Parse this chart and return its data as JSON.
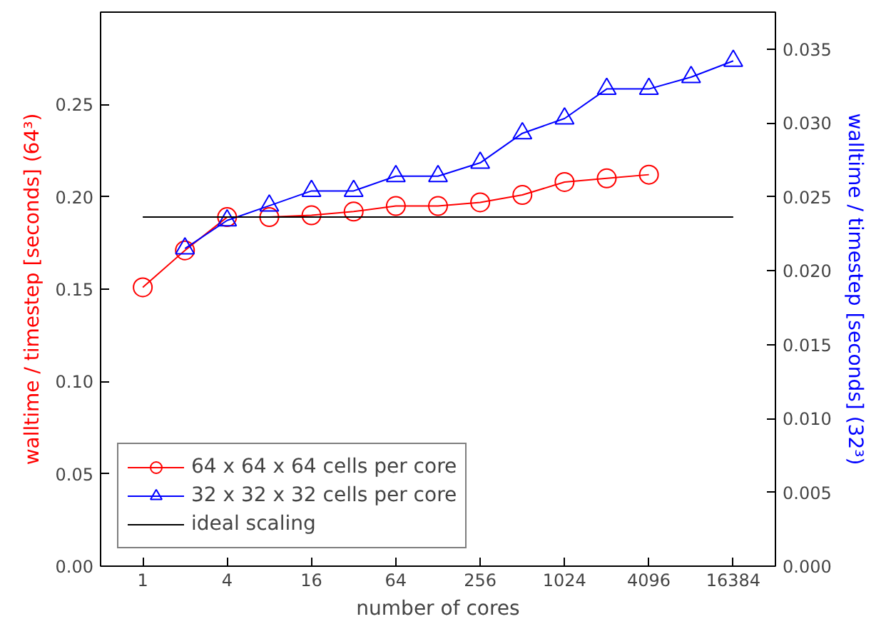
{
  "chart_data": {
    "type": "line",
    "xlabel": "number of cores",
    "ylabel": "walltime / timestep [seconds] (64³)",
    "y2label": "walltime / timestep [seconds] (32³)",
    "log": "x",
    "xlim": [
      0.5,
      32768
    ],
    "xticks": [
      1,
      4,
      16,
      64,
      256,
      1024,
      4096,
      16384
    ],
    "ylim": [
      0,
      0.3
    ],
    "yticks": [
      {
        "value": 0,
        "label": "0.00"
      },
      {
        "value": 0.05,
        "label": "0.05"
      },
      {
        "value": 0.1,
        "label": "0.10"
      },
      {
        "value": 0.15,
        "label": "0.15"
      },
      {
        "value": 0.2,
        "label": "0.20"
      },
      {
        "value": 0.25,
        "label": "0.25"
      }
    ],
    "y2lim": [
      0,
      0.0375
    ],
    "y2ticks": [
      {
        "value": 0,
        "label": "0.000"
      },
      {
        "value": 0.005,
        "label": "0.005"
      },
      {
        "value": 0.01,
        "label": "0.010"
      },
      {
        "value": 0.015,
        "label": "0.015"
      },
      {
        "value": 0.02,
        "label": "0.020"
      },
      {
        "value": 0.025,
        "label": "0.025"
      },
      {
        "value": 0.03,
        "label": "0.030"
      },
      {
        "value": 0.035,
        "label": "0.035"
      }
    ],
    "grid": false,
    "legend": "bottom left",
    "series": [
      {
        "name": "64 x 64 x 64 cells per core",
        "color": "#ff0000",
        "marker": "circle",
        "axis": "y",
        "x": [
          1,
          2,
          4,
          8,
          16,
          32,
          64,
          128,
          256,
          512,
          1024,
          2048,
          4096
        ],
        "values": [
          0.151,
          0.171,
          0.189,
          0.189,
          0.19,
          0.192,
          0.195,
          0.195,
          0.197,
          0.201,
          0.208,
          0.21,
          0.212
        ]
      },
      {
        "name": "32 x 32 x 32 cells per core",
        "color": "#0000ff",
        "marker": "triangle",
        "axis": "y2",
        "x": [
          2,
          4,
          8,
          16,
          32,
          64,
          128,
          256,
          512,
          1024,
          2048,
          4096,
          8192,
          16384
        ],
        "values": [
          0.0215,
          0.0234,
          0.0244,
          0.0254,
          0.0254,
          0.0264,
          0.0264,
          0.0273,
          0.0293,
          0.0303,
          0.0323,
          0.0323,
          0.0331,
          0.0342
        ]
      },
      {
        "name": "ideal scaling",
        "color": "#000000",
        "marker": "none",
        "axis": "y",
        "x": [
          1,
          16384
        ],
        "values": [
          0.189,
          0.189
        ]
      }
    ]
  }
}
